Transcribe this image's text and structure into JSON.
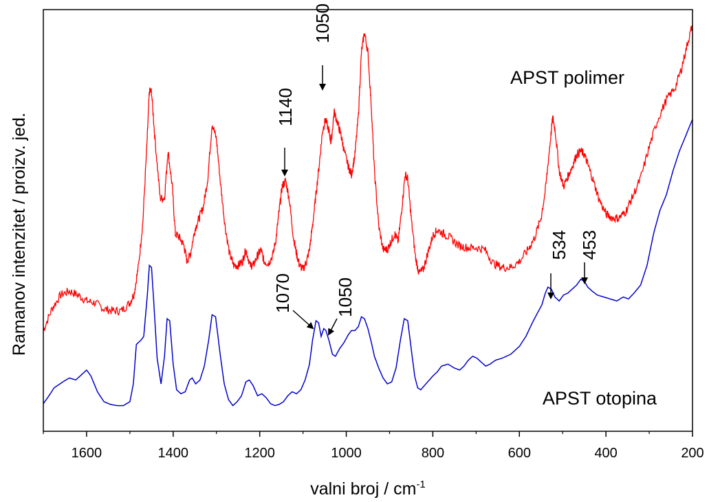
{
  "chart_data": {
    "type": "line",
    "xlabel": "valni broj / cm",
    "xlabel_superscript": "-1",
    "ylabel": "Ramanov intenzitet / proizv. jed.",
    "xlim": [
      1700,
      200
    ],
    "x_reversed": true,
    "ylim": [
      0,
      1
    ],
    "x_ticks": [
      1600,
      1400,
      1200,
      1000,
      800,
      600,
      400,
      200
    ],
    "y_ticks_labeled": false,
    "grid": false,
    "series": [
      {
        "name": "APST polimer",
        "color": "#ff0000",
        "points": [
          [
            1700,
            0.215
          ],
          [
            1680,
            0.27
          ],
          [
            1660,
            0.305
          ],
          [
            1640,
            0.315
          ],
          [
            1620,
            0.305
          ],
          [
            1600,
            0.29
          ],
          [
            1580,
            0.285
          ],
          [
            1560,
            0.27
          ],
          [
            1540,
            0.265
          ],
          [
            1520,
            0.265
          ],
          [
            1500,
            0.285
          ],
          [
            1490,
            0.31
          ],
          [
            1480,
            0.38
          ],
          [
            1470,
            0.49
          ],
          [
            1460,
            0.7
          ],
          [
            1455,
            0.82
          ],
          [
            1450,
            0.82
          ],
          [
            1442,
            0.7
          ],
          [
            1430,
            0.55
          ],
          [
            1420,
            0.55
          ],
          [
            1412,
            0.67
          ],
          [
            1402,
            0.58
          ],
          [
            1395,
            0.46
          ],
          [
            1385,
            0.45
          ],
          [
            1375,
            0.43
          ],
          [
            1368,
            0.39
          ],
          [
            1360,
            0.41
          ],
          [
            1350,
            0.47
          ],
          [
            1340,
            0.5
          ],
          [
            1330,
            0.53
          ],
          [
            1320,
            0.6
          ],
          [
            1310,
            0.74
          ],
          [
            1300,
            0.7
          ],
          [
            1290,
            0.58
          ],
          [
            1280,
            0.48
          ],
          [
            1270,
            0.41
          ],
          [
            1260,
            0.38
          ],
          [
            1250,
            0.38
          ],
          [
            1240,
            0.39
          ],
          [
            1232,
            0.42
          ],
          [
            1222,
            0.38
          ],
          [
            1215,
            0.38
          ],
          [
            1205,
            0.405
          ],
          [
            1197,
            0.42
          ],
          [
            1190,
            0.39
          ],
          [
            1180,
            0.385
          ],
          [
            1170,
            0.405
          ],
          [
            1162,
            0.45
          ],
          [
            1155,
            0.52
          ],
          [
            1148,
            0.58
          ],
          [
            1140,
            0.595
          ],
          [
            1132,
            0.55
          ],
          [
            1122,
            0.45
          ],
          [
            1115,
            0.41
          ],
          [
            1108,
            0.38
          ],
          [
            1100,
            0.37
          ],
          [
            1092,
            0.39
          ],
          [
            1085,
            0.42
          ],
          [
            1078,
            0.48
          ],
          [
            1070,
            0.56
          ],
          [
            1062,
            0.64
          ],
          [
            1055,
            0.72
          ],
          [
            1048,
            0.75
          ],
          [
            1040,
            0.72
          ],
          [
            1035,
            0.69
          ],
          [
            1028,
            0.77
          ],
          [
            1020,
            0.74
          ],
          [
            1012,
            0.71
          ],
          [
            1005,
            0.67
          ],
          [
            995,
            0.63
          ],
          [
            988,
            0.61
          ],
          [
            980,
            0.66
          ],
          [
            972,
            0.76
          ],
          [
            965,
            0.92
          ],
          [
            958,
            0.97
          ],
          [
            950,
            0.92
          ],
          [
            942,
            0.78
          ],
          [
            935,
            0.62
          ],
          [
            925,
            0.48
          ],
          [
            915,
            0.42
          ],
          [
            905,
            0.42
          ],
          [
            897,
            0.44
          ],
          [
            888,
            0.46
          ],
          [
            880,
            0.44
          ],
          [
            872,
            0.52
          ],
          [
            864,
            0.61
          ],
          [
            858,
            0.6
          ],
          [
            850,
            0.5
          ],
          [
            840,
            0.4
          ],
          [
            832,
            0.36
          ],
          [
            822,
            0.37
          ],
          [
            812,
            0.41
          ],
          [
            800,
            0.455
          ],
          [
            790,
            0.47
          ],
          [
            775,
            0.46
          ],
          [
            760,
            0.45
          ],
          [
            740,
            0.43
          ],
          [
            720,
            0.425
          ],
          [
            700,
            0.425
          ],
          [
            680,
            0.42
          ],
          [
            660,
            0.385
          ],
          [
            640,
            0.375
          ],
          [
            620,
            0.375
          ],
          [
            600,
            0.39
          ],
          [
            580,
            0.42
          ],
          [
            565,
            0.45
          ],
          [
            550,
            0.5
          ],
          [
            540,
            0.57
          ],
          [
            530,
            0.68
          ],
          [
            523,
            0.755
          ],
          [
            517,
            0.72
          ],
          [
            508,
            0.62
          ],
          [
            498,
            0.58
          ],
          [
            488,
            0.605
          ],
          [
            478,
            0.63
          ],
          [
            468,
            0.66
          ],
          [
            458,
            0.67
          ],
          [
            450,
            0.66
          ],
          [
            440,
            0.63
          ],
          [
            428,
            0.59
          ],
          [
            415,
            0.545
          ],
          [
            400,
            0.51
          ],
          [
            385,
            0.5
          ],
          [
            370,
            0.5
          ],
          [
            355,
            0.515
          ],
          [
            340,
            0.55
          ],
          [
            320,
            0.6
          ],
          [
            300,
            0.68
          ],
          [
            280,
            0.75
          ],
          [
            260,
            0.8
          ],
          [
            240,
            0.83
          ],
          [
            225,
            0.88
          ],
          [
            212,
            0.94
          ],
          [
            200,
            0.99
          ]
        ]
      },
      {
        "name": "APST otopina",
        "color": "#0000cc",
        "points": [
          [
            1700,
            0.03
          ],
          [
            1690,
            0.045
          ],
          [
            1675,
            0.07
          ],
          [
            1655,
            0.085
          ],
          [
            1640,
            0.095
          ],
          [
            1625,
            0.09
          ],
          [
            1610,
            0.105
          ],
          [
            1600,
            0.115
          ],
          [
            1590,
            0.1
          ],
          [
            1575,
            0.06
          ],
          [
            1560,
            0.035
          ],
          [
            1545,
            0.028
          ],
          [
            1530,
            0.025
          ],
          [
            1515,
            0.025
          ],
          [
            1500,
            0.035
          ],
          [
            1492,
            0.08
          ],
          [
            1485,
            0.18
          ],
          [
            1475,
            0.19
          ],
          [
            1468,
            0.2
          ],
          [
            1460,
            0.3
          ],
          [
            1455,
            0.38
          ],
          [
            1450,
            0.375
          ],
          [
            1445,
            0.29
          ],
          [
            1437,
            0.145
          ],
          [
            1428,
            0.08
          ],
          [
            1420,
            0.15
          ],
          [
            1414,
            0.245
          ],
          [
            1408,
            0.24
          ],
          [
            1400,
            0.13
          ],
          [
            1392,
            0.065
          ],
          [
            1382,
            0.055
          ],
          [
            1372,
            0.06
          ],
          [
            1362,
            0.09
          ],
          [
            1356,
            0.095
          ],
          [
            1348,
            0.08
          ],
          [
            1338,
            0.09
          ],
          [
            1328,
            0.125
          ],
          [
            1318,
            0.19
          ],
          [
            1310,
            0.255
          ],
          [
            1302,
            0.25
          ],
          [
            1292,
            0.16
          ],
          [
            1282,
            0.08
          ],
          [
            1272,
            0.04
          ],
          [
            1262,
            0.025
          ],
          [
            1252,
            0.035
          ],
          [
            1242,
            0.05
          ],
          [
            1232,
            0.085
          ],
          [
            1224,
            0.09
          ],
          [
            1215,
            0.075
          ],
          [
            1205,
            0.05
          ],
          [
            1195,
            0.055
          ],
          [
            1185,
            0.045
          ],
          [
            1175,
            0.03
          ],
          [
            1165,
            0.025
          ],
          [
            1155,
            0.028
          ],
          [
            1145,
            0.035
          ],
          [
            1135,
            0.05
          ],
          [
            1125,
            0.06
          ],
          [
            1115,
            0.055
          ],
          [
            1105,
            0.065
          ],
          [
            1095,
            0.09
          ],
          [
            1085,
            0.13
          ],
          [
            1078,
            0.19
          ],
          [
            1070,
            0.24
          ],
          [
            1064,
            0.235
          ],
          [
            1058,
            0.2
          ],
          [
            1052,
            0.22
          ],
          [
            1047,
            0.215
          ],
          [
            1040,
            0.19
          ],
          [
            1032,
            0.155
          ],
          [
            1025,
            0.15
          ],
          [
            1015,
            0.17
          ],
          [
            1005,
            0.185
          ],
          [
            995,
            0.205
          ],
          [
            988,
            0.215
          ],
          [
            980,
            0.215
          ],
          [
            972,
            0.225
          ],
          [
            965,
            0.25
          ],
          [
            958,
            0.245
          ],
          [
            950,
            0.22
          ],
          [
            942,
            0.185
          ],
          [
            935,
            0.15
          ],
          [
            925,
            0.12
          ],
          [
            915,
            0.095
          ],
          [
            905,
            0.08
          ],
          [
            895,
            0.085
          ],
          [
            885,
            0.12
          ],
          [
            875,
            0.19
          ],
          [
            866,
            0.245
          ],
          [
            858,
            0.24
          ],
          [
            850,
            0.17
          ],
          [
            842,
            0.1
          ],
          [
            835,
            0.07
          ],
          [
            828,
            0.065
          ],
          [
            820,
            0.075
          ],
          [
            812,
            0.085
          ],
          [
            800,
            0.1
          ],
          [
            790,
            0.11
          ],
          [
            780,
            0.125
          ],
          [
            765,
            0.13
          ],
          [
            750,
            0.12
          ],
          [
            738,
            0.115
          ],
          [
            728,
            0.125
          ],
          [
            718,
            0.14
          ],
          [
            708,
            0.15
          ],
          [
            698,
            0.145
          ],
          [
            688,
            0.135
          ],
          [
            678,
            0.125
          ],
          [
            668,
            0.13
          ],
          [
            655,
            0.14
          ],
          [
            640,
            0.145
          ],
          [
            620,
            0.155
          ],
          [
            600,
            0.175
          ],
          [
            585,
            0.2
          ],
          [
            570,
            0.235
          ],
          [
            558,
            0.26
          ],
          [
            548,
            0.28
          ],
          [
            540,
            0.31
          ],
          [
            534,
            0.325
          ],
          [
            526,
            0.32
          ],
          [
            518,
            0.3
          ],
          [
            508,
            0.29
          ],
          [
            498,
            0.305
          ],
          [
            488,
            0.31
          ],
          [
            478,
            0.32
          ],
          [
            468,
            0.33
          ],
          [
            458,
            0.345
          ],
          [
            450,
            0.34
          ],
          [
            442,
            0.325
          ],
          [
            432,
            0.315
          ],
          [
            420,
            0.305
          ],
          [
            405,
            0.3
          ],
          [
            390,
            0.295
          ],
          [
            375,
            0.29
          ],
          [
            360,
            0.3
          ],
          [
            348,
            0.295
          ],
          [
            335,
            0.31
          ],
          [
            320,
            0.33
          ],
          [
            305,
            0.38
          ],
          [
            290,
            0.46
          ],
          [
            275,
            0.52
          ],
          [
            260,
            0.56
          ],
          [
            245,
            0.62
          ],
          [
            230,
            0.67
          ],
          [
            215,
            0.71
          ],
          [
            200,
            0.75
          ]
        ]
      }
    ],
    "series_labels": [
      {
        "text": "APST polimer",
        "series": 0
      },
      {
        "text": "APST otopina",
        "series": 1
      }
    ],
    "annotations": [
      {
        "text": "1050",
        "x": 1050,
        "y": 0.75,
        "series": 0,
        "orientation": "vertical"
      },
      {
        "text": "1140",
        "x": 1140,
        "y": 0.595,
        "series": 0,
        "orientation": "vertical"
      },
      {
        "text": "1070",
        "x": 1070,
        "y": 0.24,
        "series": 1,
        "orientation": "vertical"
      },
      {
        "text": "1050",
        "x": 1050,
        "y": 0.22,
        "series": 1,
        "orientation": "vertical"
      },
      {
        "text": "534",
        "x": 534,
        "y": 0.325,
        "series": 1,
        "orientation": "vertical"
      },
      {
        "text": "453",
        "x": 453,
        "y": 0.345,
        "series": 1,
        "orientation": "vertical"
      }
    ]
  }
}
